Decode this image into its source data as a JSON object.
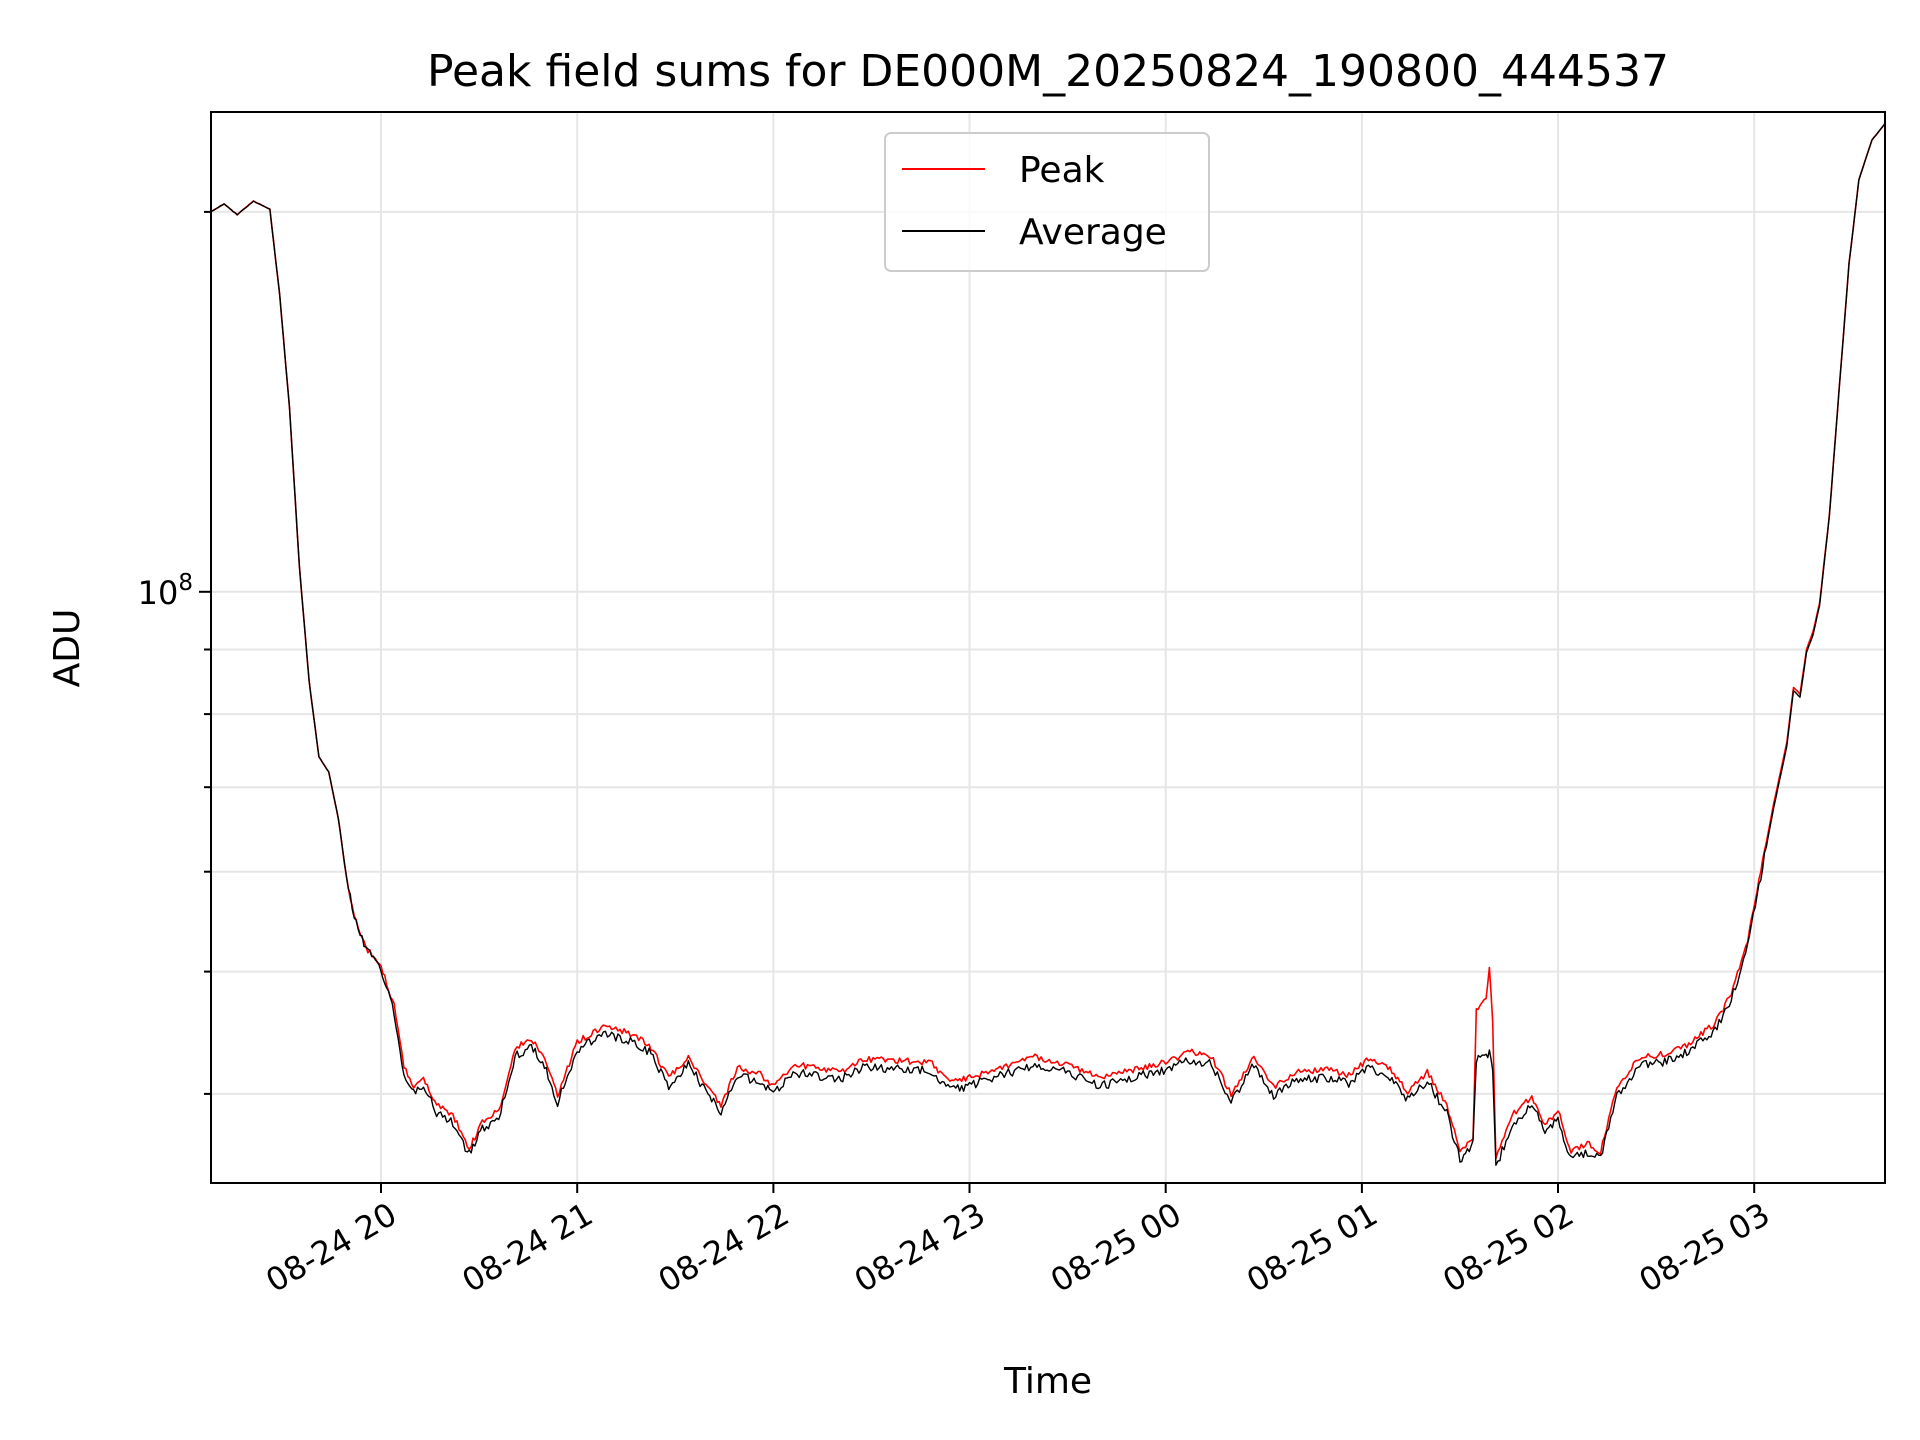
{
  "chart_data": {
    "type": "line",
    "title": "Peak field sums for DE000M_20250824_190800_444537",
    "xlabel": "Time",
    "ylabel": "ADU",
    "yscale": "log",
    "grid": true,
    "legend_position": "top-center",
    "xlim": [
      "2025-08-24 19:08",
      "2025-08-25 03:40"
    ],
    "ylim": [
      34000000,
      240000000
    ],
    "x_ticks": [
      {
        "t": "2025-08-24 20:00",
        "label": "08-24 20"
      },
      {
        "t": "2025-08-24 21:00",
        "label": "08-24 21"
      },
      {
        "t": "2025-08-24 22:00",
        "label": "08-24 22"
      },
      {
        "t": "2025-08-24 23:00",
        "label": "08-24 23"
      },
      {
        "t": "2025-08-25 00:00",
        "label": "08-25 00"
      },
      {
        "t": "2025-08-25 01:00",
        "label": "08-25 01"
      },
      {
        "t": "2025-08-25 02:00",
        "label": "08-25 02"
      },
      {
        "t": "2025-08-25 03:00",
        "label": "08-25 03"
      }
    ],
    "y_major_ticks": [
      {
        "v": 100000000,
        "base": "10",
        "exp": "8"
      }
    ],
    "y_minor_ticks": [
      40000000,
      50000000,
      60000000,
      70000000,
      80000000,
      90000000,
      200000000
    ],
    "series": [
      {
        "name": "Peak",
        "color": "#ff0000",
        "points": [
          [
            "2025-08-24 19:08",
            200000000.0
          ],
          [
            "2025-08-24 19:12",
            203000000.0
          ],
          [
            "2025-08-24 19:16",
            199000000.0
          ],
          [
            "2025-08-24 19:21",
            204000000.0
          ],
          [
            "2025-08-24 19:26",
            201000000.0
          ],
          [
            "2025-08-24 19:29",
            172000000.0
          ],
          [
            "2025-08-24 19:32",
            140000000.0
          ],
          [
            "2025-08-24 19:35",
            105000000.0
          ],
          [
            "2025-08-24 19:38",
            85000000.0
          ],
          [
            "2025-08-24 19:41",
            74000000.0
          ],
          [
            "2025-08-24 19:44",
            72000000.0
          ],
          [
            "2025-08-24 19:47",
            66000000.0
          ],
          [
            "2025-08-24 19:50",
            58000000.0
          ],
          [
            "2025-08-24 19:53",
            54000000.0
          ],
          [
            "2025-08-24 19:56",
            52000000.0
          ],
          [
            "2025-08-24 20:00",
            50500000.0
          ],
          [
            "2025-08-24 20:04",
            47000000.0
          ],
          [
            "2025-08-24 20:07",
            42000000.0
          ],
          [
            "2025-08-24 20:10",
            40500000.0
          ],
          [
            "2025-08-24 20:13",
            41200000.0
          ],
          [
            "2025-08-24 20:17",
            39200000.0
          ],
          [
            "2025-08-24 20:22",
            38500000.0
          ],
          [
            "2025-08-24 20:27",
            36200000.0
          ],
          [
            "2025-08-24 20:31",
            38000000.0
          ],
          [
            "2025-08-24 20:36",
            38800000.0
          ],
          [
            "2025-08-24 20:41",
            43500000.0
          ],
          [
            "2025-08-24 20:46",
            44200000.0
          ],
          [
            "2025-08-24 20:50",
            42800000.0
          ],
          [
            "2025-08-24 20:54",
            39800000.0
          ],
          [
            "2025-08-24 21:00",
            44000000.0
          ],
          [
            "2025-08-24 21:08",
            45200000.0
          ],
          [
            "2025-08-24 21:15",
            44800000.0
          ],
          [
            "2025-08-24 21:22",
            43800000.0
          ],
          [
            "2025-08-24 21:28",
            41200000.0
          ],
          [
            "2025-08-24 21:34",
            42800000.0
          ],
          [
            "2025-08-24 21:40",
            40500000.0
          ],
          [
            "2025-08-24 21:44",
            39200000.0
          ],
          [
            "2025-08-24 21:49",
            42000000.0
          ],
          [
            "2025-08-24 21:56",
            41500000.0
          ],
          [
            "2025-08-24 22:00",
            40500000.0
          ],
          [
            "2025-08-24 22:06",
            42200000.0
          ],
          [
            "2025-08-24 22:13",
            42000000.0
          ],
          [
            "2025-08-24 22:20",
            41600000.0
          ],
          [
            "2025-08-24 22:28",
            42600000.0
          ],
          [
            "2025-08-24 22:38",
            42500000.0
          ],
          [
            "2025-08-24 22:48",
            42400000.0
          ],
          [
            "2025-08-24 22:54",
            40800000.0
          ],
          [
            "2025-08-24 23:00",
            41200000.0
          ],
          [
            "2025-08-24 23:10",
            42000000.0
          ],
          [
            "2025-08-24 23:20",
            42800000.0
          ],
          [
            "2025-08-24 23:30",
            42200000.0
          ],
          [
            "2025-08-24 23:40",
            41200000.0
          ],
          [
            "2025-08-24 23:50",
            41800000.0
          ],
          [
            "2025-08-25 00:00",
            42400000.0
          ],
          [
            "2025-08-25 00:08",
            43200000.0
          ],
          [
            "2025-08-25 00:14",
            42800000.0
          ],
          [
            "2025-08-25 00:20",
            40000000.0
          ],
          [
            "2025-08-25 00:27",
            42800000.0
          ],
          [
            "2025-08-25 00:33",
            40500000.0
          ],
          [
            "2025-08-25 00:40",
            41600000.0
          ],
          [
            "2025-08-25 00:50",
            41800000.0
          ],
          [
            "2025-08-25 00:56",
            41400000.0
          ],
          [
            "2025-08-25 01:02",
            42600000.0
          ],
          [
            "2025-08-25 01:08",
            42000000.0
          ],
          [
            "2025-08-25 01:14",
            40200000.0
          ],
          [
            "2025-08-25 01:20",
            41600000.0
          ],
          [
            "2025-08-25 01:26",
            39200000.0
          ],
          [
            "2025-08-25 01:30",
            36000000.0
          ],
          [
            "2025-08-25 01:34",
            37000000.0
          ],
          [
            "2025-08-25 01:35",
            46500000.0
          ],
          [
            "2025-08-25 01:38",
            47500000.0
          ],
          [
            "2025-08-25 01:39",
            50500000.0
          ],
          [
            "2025-08-25 01:40",
            45500000.0
          ],
          [
            "2025-08-25 01:41",
            35500000.0
          ],
          [
            "2025-08-25 01:46",
            38500000.0
          ],
          [
            "2025-08-25 01:52",
            39800000.0
          ],
          [
            "2025-08-25 01:56",
            37800000.0
          ],
          [
            "2025-08-25 02:00",
            38800000.0
          ],
          [
            "2025-08-25 02:04",
            36000000.0
          ],
          [
            "2025-08-25 02:09",
            36600000.0
          ],
          [
            "2025-08-25 02:13",
            36000000.0
          ],
          [
            "2025-08-25 02:18",
            40500000.0
          ],
          [
            "2025-08-25 02:25",
            42800000.0
          ],
          [
            "2025-08-25 02:32",
            43000000.0
          ],
          [
            "2025-08-25 02:40",
            43800000.0
          ],
          [
            "2025-08-25 02:48",
            45500000.0
          ],
          [
            "2025-08-25 02:53",
            48000000.0
          ],
          [
            "2025-08-25 02:58",
            53000000.0
          ],
          [
            "2025-08-25 03:02",
            60000000.0
          ],
          [
            "2025-08-25 03:06",
            68000000.0
          ],
          [
            "2025-08-25 03:10",
            76000000.0
          ],
          [
            "2025-08-25 03:12",
            84000000.0
          ],
          [
            "2025-08-25 03:14",
            83000000.0
          ],
          [
            "2025-08-25 03:16",
            90000000.0
          ],
          [
            "2025-08-25 03:18",
            93000000.0
          ],
          [
            "2025-08-25 03:20",
            98000000.0
          ],
          [
            "2025-08-25 03:23",
            115000000.0
          ],
          [
            "2025-08-25 03:26",
            145000000.0
          ],
          [
            "2025-08-25 03:29",
            182000000.0
          ],
          [
            "2025-08-25 03:32",
            212000000.0
          ],
          [
            "2025-08-25 03:36",
            228000000.0
          ],
          [
            "2025-08-25 03:40",
            235000000.0
          ]
        ]
      },
      {
        "name": "Average",
        "color": "#000000",
        "points": [
          [
            "2025-08-24 19:08",
            200000000.0
          ],
          [
            "2025-08-24 19:12",
            203000000.0
          ],
          [
            "2025-08-24 19:16",
            199000000.0
          ],
          [
            "2025-08-24 19:21",
            204000000.0
          ],
          [
            "2025-08-24 19:26",
            201000000.0
          ],
          [
            "2025-08-24 19:29",
            172000000.0
          ],
          [
            "2025-08-24 19:32",
            140000000.0
          ],
          [
            "2025-08-24 19:35",
            105000000.0
          ],
          [
            "2025-08-24 19:38",
            85000000.0
          ],
          [
            "2025-08-24 19:41",
            74000000.0
          ],
          [
            "2025-08-24 19:44",
            72000000.0
          ],
          [
            "2025-08-24 19:47",
            66000000.0
          ],
          [
            "2025-08-24 19:50",
            58000000.0
          ],
          [
            "2025-08-24 19:53",
            54000000.0
          ],
          [
            "2025-08-24 19:56",
            51800000.0
          ],
          [
            "2025-08-24 20:00",
            50000000.0
          ],
          [
            "2025-08-24 20:04",
            46500000.0
          ],
          [
            "2025-08-24 20:07",
            41500000.0
          ],
          [
            "2025-08-24 20:10",
            40000000.0
          ],
          [
            "2025-08-24 20:13",
            40600000.0
          ],
          [
            "2025-08-24 20:17",
            38700000.0
          ],
          [
            "2025-08-24 20:22",
            38000000.0
          ],
          [
            "2025-08-24 20:27",
            35800000.0
          ],
          [
            "2025-08-24 20:31",
            37500000.0
          ],
          [
            "2025-08-24 20:36",
            38200000.0
          ],
          [
            "2025-08-24 20:41",
            42800000.0
          ],
          [
            "2025-08-24 20:46",
            43600000.0
          ],
          [
            "2025-08-24 20:50",
            42200000.0
          ],
          [
            "2025-08-24 20:54",
            39300000.0
          ],
          [
            "2025-08-24 21:00",
            43400000.0
          ],
          [
            "2025-08-24 21:08",
            44600000.0
          ],
          [
            "2025-08-24 21:15",
            44200000.0
          ],
          [
            "2025-08-24 21:22",
            43200000.0
          ],
          [
            "2025-08-24 21:28",
            40600000.0
          ],
          [
            "2025-08-24 21:34",
            42200000.0
          ],
          [
            "2025-08-24 21:40",
            40000000.0
          ],
          [
            "2025-08-24 21:44",
            38600000.0
          ],
          [
            "2025-08-24 21:49",
            41400000.0
          ],
          [
            "2025-08-24 21:56",
            40900000.0
          ],
          [
            "2025-08-24 22:00",
            40000000.0
          ],
          [
            "2025-08-24 22:06",
            41600000.0
          ],
          [
            "2025-08-24 22:13",
            41400000.0
          ],
          [
            "2025-08-24 22:20",
            41000000.0
          ],
          [
            "2025-08-24 22:28",
            42000000.0
          ],
          [
            "2025-08-24 22:38",
            41900000.0
          ],
          [
            "2025-08-24 22:48",
            41800000.0
          ],
          [
            "2025-08-24 22:54",
            40200000.0
          ],
          [
            "2025-08-24 23:00",
            40600000.0
          ],
          [
            "2025-08-24 23:10",
            41400000.0
          ],
          [
            "2025-08-24 23:20",
            42200000.0
          ],
          [
            "2025-08-24 23:30",
            41600000.0
          ],
          [
            "2025-08-24 23:40",
            40600000.0
          ],
          [
            "2025-08-24 23:50",
            41200000.0
          ],
          [
            "2025-08-25 00:00",
            41800000.0
          ],
          [
            "2025-08-25 00:08",
            42600000.0
          ],
          [
            "2025-08-25 00:14",
            42200000.0
          ],
          [
            "2025-08-25 00:20",
            39400000.0
          ],
          [
            "2025-08-25 00:27",
            42200000.0
          ],
          [
            "2025-08-25 00:33",
            39900000.0
          ],
          [
            "2025-08-25 00:40",
            41000000.0
          ],
          [
            "2025-08-25 00:50",
            41200000.0
          ],
          [
            "2025-08-25 00:56",
            40800000.0
          ],
          [
            "2025-08-25 01:02",
            42000000.0
          ],
          [
            "2025-08-25 01:08",
            41400000.0
          ],
          [
            "2025-08-25 01:14",
            39600000.0
          ],
          [
            "2025-08-25 01:20",
            41000000.0
          ],
          [
            "2025-08-25 01:26",
            38600000.0
          ],
          [
            "2025-08-25 01:30",
            35500000.0
          ],
          [
            "2025-08-25 01:34",
            36500000.0
          ],
          [
            "2025-08-25 01:35",
            42500000.0
          ],
          [
            "2025-08-25 01:38",
            42800000.0
          ],
          [
            "2025-08-25 01:39",
            43000000.0
          ],
          [
            "2025-08-25 01:40",
            42000000.0
          ],
          [
            "2025-08-25 01:41",
            35000000.0
          ],
          [
            "2025-08-25 01:46",
            37900000.0
          ],
          [
            "2025-08-25 01:52",
            39200000.0
          ],
          [
            "2025-08-25 01:56",
            37300000.0
          ],
          [
            "2025-08-25 02:00",
            38200000.0
          ],
          [
            "2025-08-25 02:04",
            35500000.0
          ],
          [
            "2025-08-25 02:09",
            36000000.0
          ],
          [
            "2025-08-25 02:13",
            35500000.0
          ],
          [
            "2025-08-25 02:18",
            39900000.0
          ],
          [
            "2025-08-25 02:25",
            42200000.0
          ],
          [
            "2025-08-25 02:32",
            42400000.0
          ],
          [
            "2025-08-25 02:40",
            43200000.0
          ],
          [
            "2025-08-25 02:48",
            44900000.0
          ],
          [
            "2025-08-25 02:53",
            47500000.0
          ],
          [
            "2025-08-25 02:58",
            52500000.0
          ],
          [
            "2025-08-25 03:02",
            59500000.0
          ],
          [
            "2025-08-25 03:06",
            67500000.0
          ],
          [
            "2025-08-25 03:10",
            75500000.0
          ],
          [
            "2025-08-25 03:12",
            83500000.0
          ],
          [
            "2025-08-25 03:14",
            82500000.0
          ],
          [
            "2025-08-25 03:16",
            89500000.0
          ],
          [
            "2025-08-25 03:18",
            92500000.0
          ],
          [
            "2025-08-25 03:20",
            97500000.0
          ],
          [
            "2025-08-25 03:23",
            115000000.0
          ],
          [
            "2025-08-25 03:26",
            145000000.0
          ],
          [
            "2025-08-25 03:29",
            182000000.0
          ],
          [
            "2025-08-25 03:32",
            212000000.0
          ],
          [
            "2025-08-25 03:36",
            228000000.0
          ],
          [
            "2025-08-25 03:40",
            235000000.0
          ]
        ]
      }
    ]
  }
}
